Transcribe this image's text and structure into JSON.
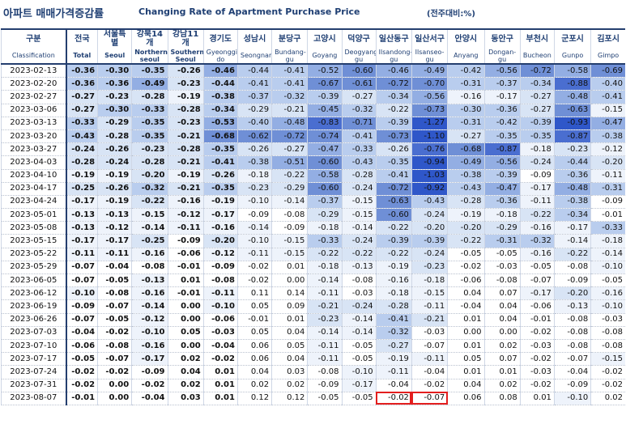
{
  "title_ko": "아파트 매매가격증감률",
  "title_en": "Changing Rate of Apartment Purchase Price",
  "unit": "(전주대비:%)",
  "columns": [
    {
      "ko": "구분",
      "en": "Classification"
    },
    {
      "ko": "전국",
      "en": "Total"
    },
    {
      "ko": "서울특별",
      "en": "Seoul"
    },
    {
      "ko": "강북14개",
      "en": "Northern seoul"
    },
    {
      "ko": "강남11개",
      "en": "Southern Seoul"
    },
    {
      "ko": "경기도",
      "en": "Gyeonggi-do"
    },
    {
      "ko": "성남시",
      "en": "Seongnam"
    },
    {
      "ko": "분당구",
      "en": "Bundang-gu"
    },
    {
      "ko": "고양시",
      "en": "Goyang"
    },
    {
      "ko": "덕양구",
      "en": "Deogyang-gu"
    },
    {
      "ko": "일산동구",
      "en": "Ilsandong-gu"
    },
    {
      "ko": "일산서구",
      "en": "Ilsanseo-gu"
    },
    {
      "ko": "안양시",
      "en": "Anyang"
    },
    {
      "ko": "동안구",
      "en": "Dongan-gu"
    },
    {
      "ko": "부천시",
      "en": "Bucheon"
    },
    {
      "ko": "군포시",
      "en": "Gunpo"
    },
    {
      "ko": "김포시",
      "en": "Gimpo"
    }
  ],
  "colors": {
    "header_text": "#1f3f73",
    "rule": "#243e6e",
    "heat_scale": [
      "#ffffff",
      "#eef3fb",
      "#d8e4f5",
      "#b9cdee",
      "#93aee3",
      "#6f8fd6",
      "#4a6ed0",
      "#2f57c9"
    ],
    "highlight_box": "#e31e1e"
  },
  "chart_data": {
    "type": "heatmap",
    "title": "아파트 매매가격증감률 Changing Rate of Apartment Purchase Price",
    "unit": "(전주대비:%)",
    "columns": [
      "전국",
      "서울특별",
      "강북14개",
      "강남11개",
      "경기도",
      "성남시",
      "분당구",
      "고양시",
      "덕양구",
      "일산동구",
      "일산서구",
      "안양시",
      "동안구",
      "부천시",
      "군포시",
      "김포시"
    ],
    "rows": [
      {
        "date": "2023-02-13",
        "values": [
          "-0.36",
          "-0.30",
          "-0.35",
          "-0.26",
          "-0.46",
          "-0.44",
          "-0.41",
          "-0.52",
          "-0.60",
          "-0.46",
          "-0.49",
          "-0.42",
          "-0.56",
          "-0.72",
          "-0.58",
          "-0.69"
        ]
      },
      {
        "date": "2023-02-20",
        "values": [
          "-0.36",
          "-0.36",
          "-0.49",
          "-0.23",
          "-0.44",
          "-0.41",
          "-0.41",
          "-0.67",
          "-0.61",
          "-0.72",
          "-0.70",
          "-0.31",
          "-0.37",
          "-0.34",
          "-0.88",
          "-0.40"
        ]
      },
      {
        "date": "2023-02-27",
        "values": [
          "-0.27",
          "-0.23",
          "-0.28",
          "-0.19",
          "-0.38",
          "-0.37",
          "-0.32",
          "-0.39",
          "-0.27",
          "-0.34",
          "-0.56",
          "-0.16",
          "-0.17",
          "-0.27",
          "-0.48",
          "-0.41"
        ]
      },
      {
        "date": "2023-03-06",
        "values": [
          "-0.27",
          "-0.30",
          "-0.33",
          "-0.28",
          "-0.34",
          "-0.29",
          "-0.21",
          "-0.45",
          "-0.32",
          "-0.22",
          "-0.73",
          "-0.30",
          "-0.36",
          "-0.27",
          "-0.63",
          "-0.15"
        ]
      },
      {
        "date": "2023-03-13",
        "values": [
          "-0.33",
          "-0.29",
          "-0.35",
          "-0.23",
          "-0.53",
          "-0.40",
          "-0.48",
          "-0.83",
          "-0.71",
          "-0.39",
          "-1.27",
          "-0.31",
          "-0.42",
          "-0.39",
          "-0.93",
          "-0.47"
        ]
      },
      {
        "date": "2023-03-20",
        "values": [
          "-0.43",
          "-0.28",
          "-0.35",
          "-0.21",
          "-0.68",
          "-0.62",
          "-0.72",
          "-0.74",
          "-0.41",
          "-0.73",
          "-1.10",
          "-0.27",
          "-0.35",
          "-0.35",
          "-0.87",
          "-0.38"
        ]
      },
      {
        "date": "2023-03-27",
        "values": [
          "-0.24",
          "-0.26",
          "-0.23",
          "-0.28",
          "-0.35",
          "-0.26",
          "-0.27",
          "-0.47",
          "-0.33",
          "-0.26",
          "-0.76",
          "-0.68",
          "-0.87",
          "-0.18",
          "-0.23",
          "-0.12"
        ]
      },
      {
        "date": "2023-04-03",
        "values": [
          "-0.28",
          "-0.24",
          "-0.28",
          "-0.21",
          "-0.41",
          "-0.38",
          "-0.51",
          "-0.60",
          "-0.43",
          "-0.35",
          "-0.94",
          "-0.49",
          "-0.56",
          "-0.24",
          "-0.44",
          "-0.20"
        ]
      },
      {
        "date": "2023-04-10",
        "values": [
          "-0.19",
          "-0.19",
          "-0.20",
          "-0.19",
          "-0.26",
          "-0.18",
          "-0.22",
          "-0.58",
          "-0.28",
          "-0.41",
          "-1.03",
          "-0.38",
          "-0.39",
          "-0.09",
          "-0.36",
          "-0.11"
        ]
      },
      {
        "date": "2023-04-17",
        "values": [
          "-0.25",
          "-0.26",
          "-0.32",
          "-0.21",
          "-0.35",
          "-0.23",
          "-0.29",
          "-0.60",
          "-0.24",
          "-0.72",
          "-0.92",
          "-0.43",
          "-0.47",
          "-0.17",
          "-0.48",
          "-0.31"
        ]
      },
      {
        "date": "2023-04-24",
        "values": [
          "-0.17",
          "-0.19",
          "-0.22",
          "-0.16",
          "-0.19",
          "-0.10",
          "-0.14",
          "-0.37",
          "-0.15",
          "-0.63",
          "-0.43",
          "-0.28",
          "-0.36",
          "-0.11",
          "-0.38",
          "-0.09"
        ]
      },
      {
        "date": "2023-05-01",
        "values": [
          "-0.13",
          "-0.13",
          "-0.15",
          "-0.12",
          "-0.17",
          "-0.09",
          "-0.08",
          "-0.29",
          "-0.15",
          "-0.60",
          "-0.24",
          "-0.19",
          "-0.18",
          "-0.22",
          "-0.34",
          "-0.01"
        ]
      },
      {
        "date": "2023-05-08",
        "values": [
          "-0.13",
          "-0.12",
          "-0.14",
          "-0.11",
          "-0.16",
          "-0.14",
          "-0.09",
          "-0.18",
          "-0.14",
          "-0.22",
          "-0.20",
          "-0.20",
          "-0.29",
          "-0.16",
          "-0.17",
          "-0.33"
        ]
      },
      {
        "date": "2023-05-15",
        "values": [
          "-0.17",
          "-0.17",
          "-0.25",
          "-0.09",
          "-0.20",
          "-0.10",
          "-0.15",
          "-0.33",
          "-0.24",
          "-0.39",
          "-0.39",
          "-0.22",
          "-0.31",
          "-0.32",
          "-0.14",
          "-0.18"
        ]
      },
      {
        "date": "2023-05-22",
        "values": [
          "-0.11",
          "-0.11",
          "-0.16",
          "-0.06",
          "-0.12",
          "-0.11",
          "-0.15",
          "-0.22",
          "-0.22",
          "-0.22",
          "-0.24",
          "-0.05",
          "-0.05",
          "-0.16",
          "-0.22",
          "-0.14"
        ]
      },
      {
        "date": "2023-05-29",
        "values": [
          "-0.07",
          "-0.04",
          "-0.08",
          "-0.01",
          "-0.09",
          "-0.02",
          "0.01",
          "-0.18",
          "-0.13",
          "-0.19",
          "-0.23",
          "-0.02",
          "-0.03",
          "-0.05",
          "-0.08",
          "-0.10"
        ]
      },
      {
        "date": "2023-06-05",
        "values": [
          "-0.07",
          "-0.05",
          "-0.13",
          "0.01",
          "-0.08",
          "-0.02",
          "0.00",
          "-0.14",
          "-0.08",
          "-0.16",
          "-0.18",
          "-0.06",
          "-0.08",
          "-0.07",
          "-0.09",
          "-0.05"
        ]
      },
      {
        "date": "2023-06-12",
        "values": [
          "-0.10",
          "-0.08",
          "-0.16",
          "-0.01",
          "-0.11",
          "0.11",
          "0.14",
          "-0.11",
          "-0.03",
          "-0.18",
          "-0.15",
          "0.04",
          "0.07",
          "-0.17",
          "-0.20",
          "-0.16"
        ]
      },
      {
        "date": "2023-06-19",
        "values": [
          "-0.09",
          "-0.07",
          "-0.14",
          "0.00",
          "-0.10",
          "0.05",
          "0.09",
          "-0.21",
          "-0.24",
          "-0.28",
          "-0.11",
          "-0.04",
          "0.04",
          "-0.06",
          "-0.13",
          "-0.10"
        ]
      },
      {
        "date": "2023-06-26",
        "values": [
          "-0.07",
          "-0.05",
          "-0.12",
          "0.00",
          "-0.06",
          "-0.01",
          "0.01",
          "-0.23",
          "-0.14",
          "-0.41",
          "-0.21",
          "0.01",
          "0.04",
          "-0.01",
          "-0.08",
          "-0.03"
        ]
      },
      {
        "date": "2023-07-03",
        "values": [
          "-0.04",
          "-0.02",
          "-0.10",
          "0.05",
          "-0.03",
          "0.05",
          "0.04",
          "-0.14",
          "-0.14",
          "-0.32",
          "-0.03",
          "0.00",
          "0.00",
          "-0.02",
          "-0.08",
          "-0.08"
        ]
      },
      {
        "date": "2023-07-10",
        "values": [
          "-0.06",
          "-0.08",
          "-0.16",
          "0.00",
          "-0.04",
          "0.06",
          "0.05",
          "-0.11",
          "-0.05",
          "-0.27",
          "-0.07",
          "0.01",
          "0.02",
          "-0.03",
          "-0.08",
          "-0.08"
        ]
      },
      {
        "date": "2023-07-17",
        "values": [
          "-0.05",
          "-0.07",
          "-0.17",
          "0.02",
          "-0.02",
          "0.06",
          "0.04",
          "-0.11",
          "-0.05",
          "-0.19",
          "-0.11",
          "0.05",
          "0.07",
          "-0.02",
          "-0.07",
          "-0.15"
        ]
      },
      {
        "date": "2023-07-24",
        "values": [
          "-0.02",
          "-0.02",
          "-0.09",
          "0.04",
          "0.01",
          "0.04",
          "0.03",
          "-0.08",
          "-0.10",
          "-0.11",
          "-0.04",
          "0.01",
          "0.01",
          "-0.03",
          "-0.04",
          "-0.02"
        ]
      },
      {
        "date": "2023-07-31",
        "values": [
          "-0.02",
          "0.00",
          "-0.02",
          "0.02",
          "0.01",
          "0.02",
          "0.02",
          "-0.09",
          "-0.17",
          "-0.04",
          "-0.02",
          "0.04",
          "0.02",
          "-0.02",
          "-0.09",
          "-0.02"
        ]
      },
      {
        "date": "2023-08-07",
        "values": [
          "-0.01",
          "0.00",
          "-0.04",
          "0.03",
          "0.01",
          "0.12",
          "0.12",
          "-0.05",
          "-0.05",
          "-0.02",
          "-0.07",
          "0.06",
          "0.08",
          "0.01",
          "-0.10",
          "0.02"
        ]
      }
    ],
    "highlighted_cells": [
      {
        "date": "2023-08-07",
        "column": "일산동구"
      },
      {
        "date": "2023-08-07",
        "column": "일산서구"
      }
    ]
  }
}
